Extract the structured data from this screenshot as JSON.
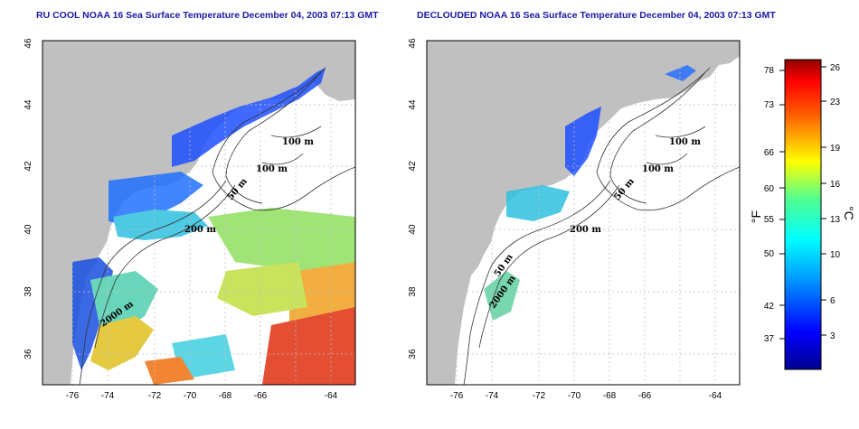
{
  "panels": [
    {
      "title": "RU COOL NOAA 16 Sea Surface Temperature December 04, 2003 07:13 GMT",
      "contour_labels": [
        "100 m",
        "100 m",
        "50 m",
        "200 m",
        "2000 m"
      ]
    },
    {
      "title": "DECLOUDED NOAA 16 Sea Surface Temperature December 04, 2003 07:13 GMT",
      "contour_labels": [
        "100 m",
        "100 m",
        "50 m",
        "200 m",
        "50 m",
        "2000 m"
      ]
    }
  ],
  "axes": {
    "lon_ticks": [
      "-76",
      "-74",
      "-72",
      "-70",
      "-68",
      "-66",
      "-64"
    ],
    "lat_ticks": [
      "46",
      "44",
      "42",
      "40",
      "38",
      "36"
    ]
  },
  "colorbar": {
    "fahrenheit_label": "°F",
    "celsius_label": "°C",
    "fahrenheit_ticks": [
      "78",
      "73",
      "66",
      "60",
      "55",
      "50",
      "42",
      "37"
    ],
    "celsius_ticks": [
      "26",
      "23",
      "19",
      "16",
      "13",
      "10",
      "6",
      "3"
    ]
  },
  "colors": {
    "land": "#c0c0c0",
    "title": "#1a1aa6",
    "grid": "#bfbfbf"
  }
}
